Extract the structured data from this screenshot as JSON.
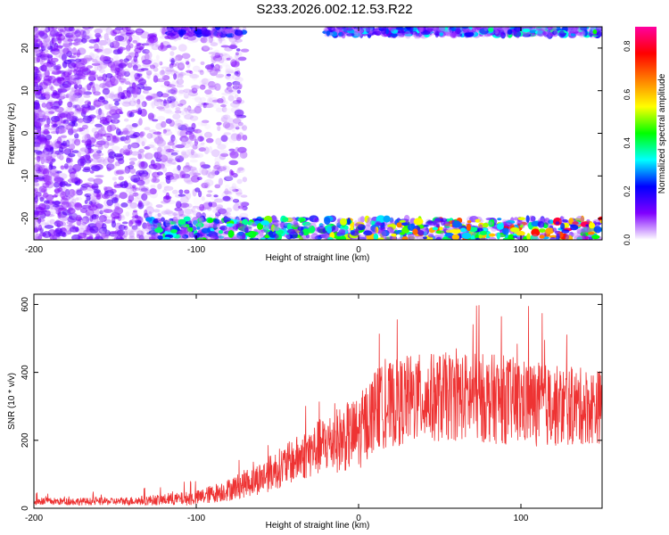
{
  "title": "S233.2026.002.12.53.R22",
  "chart_data": [
    {
      "type": "heatmap",
      "xlabel": "Height of straight line (km)",
      "ylabel": "Frequency (Hz)",
      "xlim": [
        -200,
        150
      ],
      "ylim": [
        -25,
        25
      ],
      "xticks": [
        -200,
        -100,
        0,
        100
      ],
      "yticks": [
        -20,
        -10,
        0,
        10,
        20
      ],
      "grid": false,
      "colorbar": {
        "label": "Normalized spectral amplitude",
        "range": [
          0.0,
          0.88
        ],
        "ticks": [
          0.0,
          0.2,
          0.4,
          0.6,
          0.8
        ],
        "colors": [
          "#ffffff",
          "#8000ff",
          "#0000ff",
          "#00ffff",
          "#00ff00",
          "#ffff00",
          "#ff8000",
          "#ff0000",
          "#ff00a0"
        ]
      },
      "regions": [
        {
          "name": "scattered noise",
          "x": [
            -200,
            -85
          ],
          "y": [
            -25,
            25
          ],
          "amplitude": [
            0.02,
            0.15
          ]
        },
        {
          "name": "upper band",
          "x": [
            -120,
            150
          ],
          "y": [
            23,
            25
          ],
          "amplitude": [
            0.05,
            0.45
          ]
        },
        {
          "name": "lower band",
          "x": [
            -130,
            150
          ],
          "y": [
            -25,
            -20
          ],
          "amplitude": [
            0.05,
            0.9
          ]
        }
      ]
    },
    {
      "type": "line",
      "xlabel": "Height of straight line (km)",
      "ylabel": "SNR (10 * v/v)",
      "xlim": [
        -200,
        150
      ],
      "ylim": [
        0,
        630
      ],
      "xticks": [
        -200,
        -100,
        0,
        100
      ],
      "yticks": [
        0,
        200,
        400,
        600
      ],
      "grid": false,
      "color": "#ee3333",
      "envelope": [
        {
          "x": -200,
          "mean": 20,
          "noise": 10
        },
        {
          "x": -150,
          "mean": 20,
          "noise": 10
        },
        {
          "x": -120,
          "mean": 25,
          "noise": 15
        },
        {
          "x": -100,
          "mean": 30,
          "noise": 20
        },
        {
          "x": -80,
          "mean": 55,
          "noise": 30
        },
        {
          "x": -60,
          "mean": 90,
          "noise": 45
        },
        {
          "x": -40,
          "mean": 140,
          "noise": 60
        },
        {
          "x": -20,
          "mean": 190,
          "noise": 80
        },
        {
          "x": 0,
          "mean": 220,
          "noise": 100
        },
        {
          "x": 10,
          "mean": 290,
          "noise": 110
        },
        {
          "x": 30,
          "mean": 320,
          "noise": 120
        },
        {
          "x": 60,
          "mean": 330,
          "noise": 120
        },
        {
          "x": 90,
          "mean": 320,
          "noise": 120
        },
        {
          "x": 120,
          "mean": 300,
          "noise": 110
        },
        {
          "x": 150,
          "mean": 300,
          "noise": 100
        }
      ]
    }
  ]
}
